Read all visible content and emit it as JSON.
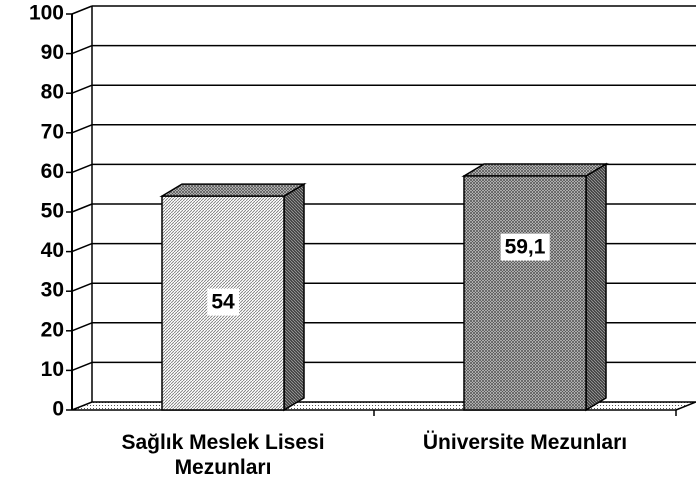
{
  "chart_data": {
    "type": "bar3d",
    "categories": [
      "Sağlık Meslek Lisesi Mezunları",
      "Üniversite Mezunları"
    ],
    "values": [
      54,
      59.1
    ],
    "value_labels": [
      "54",
      "59,1"
    ],
    "ylim": [
      0,
      100
    ],
    "yticks": [
      0,
      10,
      20,
      30,
      40,
      50,
      60,
      70,
      80,
      90,
      100
    ],
    "grid": true
  }
}
